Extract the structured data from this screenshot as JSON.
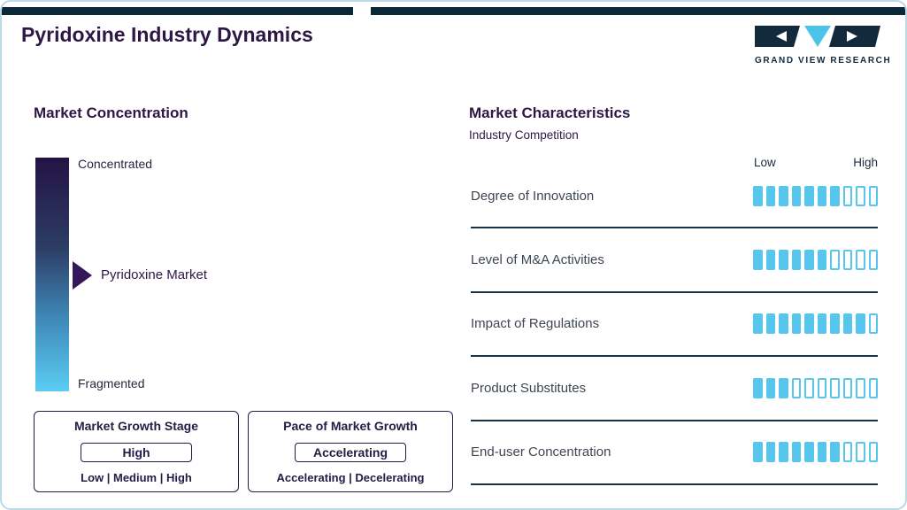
{
  "header": {
    "title": "Pyridoxine Industry Dynamics",
    "logo_text": "GRAND VIEW RESEARCH"
  },
  "colors": {
    "accent_blue": "#56c6ec",
    "brand_purple": "#2e1745",
    "dark_navy": "#0b2836",
    "separator": "#16334a"
  },
  "market_concentration": {
    "heading": "Market Concentration",
    "scale_top_label": "Concentrated",
    "scale_bottom_label": "Fragmented",
    "marker_label": "Pyridoxine Market",
    "growth_stage": {
      "title": "Market Growth Stage",
      "value": "High",
      "options": "Low | Medium | High"
    },
    "pace": {
      "title": "Pace of Market Growth",
      "value": "Accelerating",
      "options": "Accelerating | Decelerating"
    }
  },
  "market_characteristics": {
    "heading": "Market Characteristics",
    "subheading": "Industry Competition",
    "scale_low": "Low",
    "scale_high": "High",
    "rows": [
      {
        "label": "Degree of Innovation",
        "filled": 7,
        "total": 10
      },
      {
        "label": "Level of M&A Activities",
        "filled": 6,
        "total": 10
      },
      {
        "label": "Impact of Regulations",
        "filled": 9,
        "total": 10
      },
      {
        "label": "Product Substitutes",
        "filled": 3,
        "total": 10
      },
      {
        "label": "End-user Concentration",
        "filled": 7,
        "total": 10
      }
    ]
  },
  "chart_data": [
    {
      "type": "table",
      "title": "Market Concentration",
      "scale": [
        "Concentrated",
        "Fragmented"
      ],
      "marker": {
        "label": "Pyridoxine Market",
        "position_from_top": 0.5
      },
      "legend_position": "none"
    },
    {
      "type": "bar",
      "title": "Market Characteristics — Industry Competition",
      "categories": [
        "Degree of Innovation",
        "Level of M&A Activities",
        "Impact of Regulations",
        "Product Substitutes",
        "End-user Concentration"
      ],
      "values": [
        7,
        6,
        9,
        3,
        7
      ],
      "xlabel": "",
      "ylabel": "",
      "xlim": [
        0,
        10
      ],
      "scale_labels": [
        "Low",
        "High"
      ],
      "grid": false
    }
  ]
}
